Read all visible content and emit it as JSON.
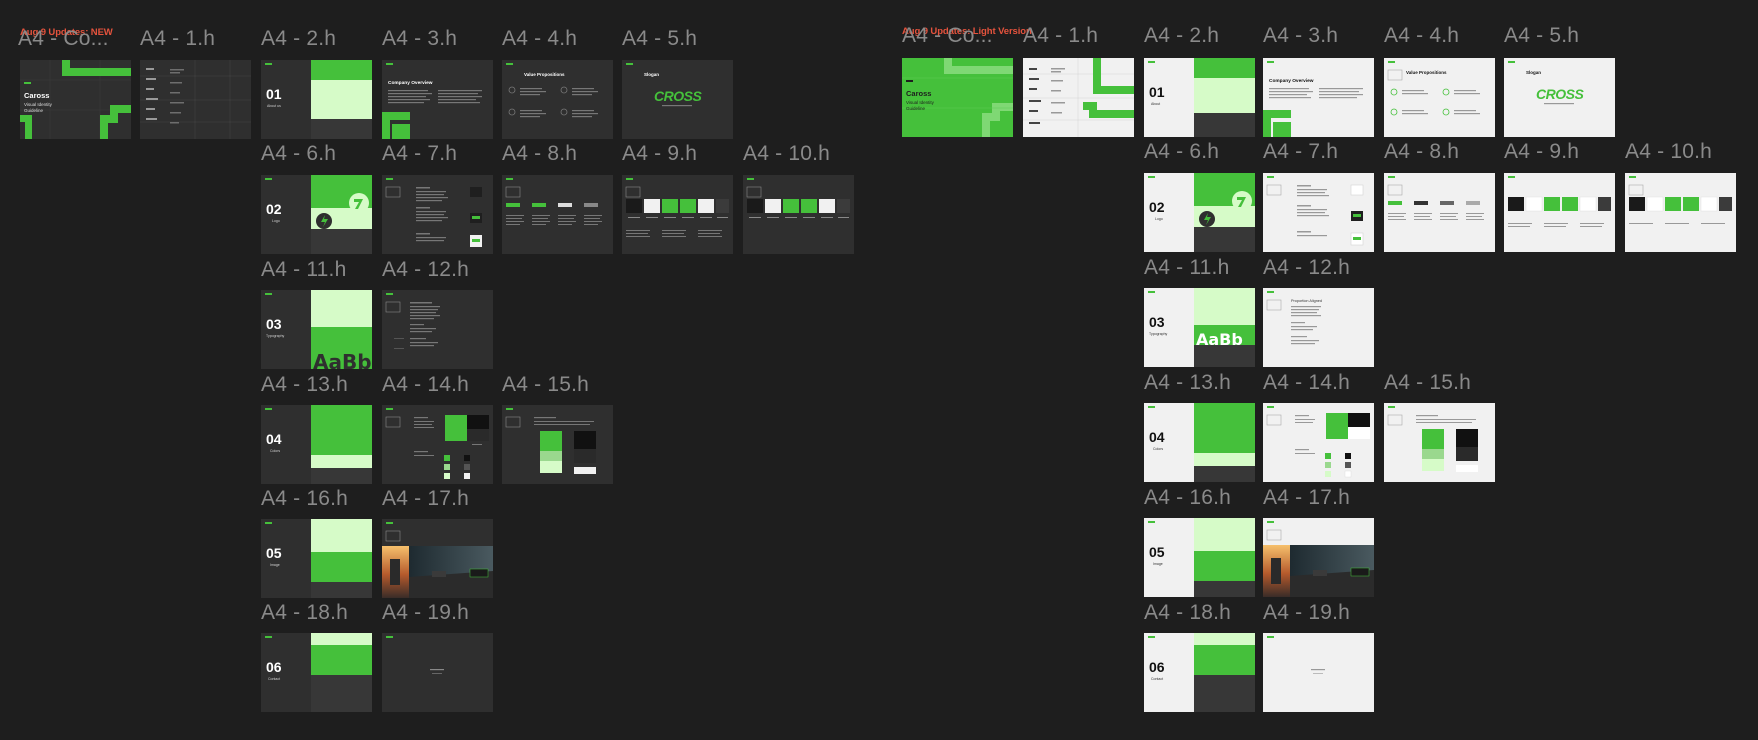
{
  "colors": {
    "canvas": "#1e1e1e",
    "section_label": "#e5533d",
    "frame_label": "#8a8a8a",
    "brand_green": "#45c03b",
    "light_green": "#d6fbc8",
    "dark_slide": "#2f2f2f",
    "light_slide": "#f1f1f1",
    "dark_panel": "#373737",
    "placeholder": "#d8d8d8"
  },
  "sections": [
    {
      "id": "dark",
      "title": "Aug 9 Updates: NEW",
      "theme": "dark",
      "frames": [
        {
          "id": "cover",
          "label": "A4 - Co...",
          "kind": "cover",
          "brand": "Caross",
          "subtitle": "Visual Identity Guideline"
        },
        {
          "id": "1",
          "label": "A4 - 1.h",
          "kind": "toc"
        },
        {
          "id": "2",
          "label": "A4 - 2.h",
          "kind": "section",
          "number": "01",
          "caption": "About us",
          "variant": "about"
        },
        {
          "id": "3",
          "label": "A4 - 3.h",
          "kind": "overview",
          "heading": "Company Overview"
        },
        {
          "id": "4",
          "label": "A4 - 4.h",
          "kind": "values",
          "heading": "Value Propositions"
        },
        {
          "id": "5",
          "label": "A4 - 5.h",
          "kind": "slogan",
          "heading": "Slogan",
          "wordmark": "CROSS"
        },
        {
          "id": "6",
          "label": "A4 - 6.h",
          "kind": "section",
          "number": "02",
          "caption": "Logo",
          "variant": "logo"
        },
        {
          "id": "7",
          "label": "A4 - 7.h",
          "kind": "logo-usage"
        },
        {
          "id": "8",
          "label": "A4 - 8.h",
          "kind": "logo-grid"
        },
        {
          "id": "9",
          "label": "A4 - 9.h",
          "kind": "logo-colors"
        },
        {
          "id": "10",
          "label": "A4 - 10.h",
          "kind": "logo-colors"
        },
        {
          "id": "11",
          "label": "A4 - 11.h",
          "kind": "section",
          "number": "03",
          "caption": "Typography",
          "variant": "type"
        },
        {
          "id": "12",
          "label": "A4 - 12.h",
          "kind": "typeface"
        },
        {
          "id": "13",
          "label": "A4 - 13.h",
          "kind": "section",
          "number": "04",
          "caption": "Colors",
          "variant": "colors"
        },
        {
          "id": "14",
          "label": "A4 - 14.h",
          "kind": "palette"
        },
        {
          "id": "15",
          "label": "A4 - 15.h",
          "kind": "proportion"
        },
        {
          "id": "16",
          "label": "A4 - 16.h",
          "kind": "section",
          "number": "05",
          "caption": "Image",
          "variant": "image"
        },
        {
          "id": "17",
          "label": "A4 - 17.h",
          "kind": "imagery"
        },
        {
          "id": "18",
          "label": "A4 - 18.h",
          "kind": "section",
          "number": "06",
          "caption": "Contact",
          "variant": "contact"
        },
        {
          "id": "19",
          "label": "A4 - 19.h",
          "kind": "blank"
        }
      ]
    },
    {
      "id": "light",
      "title": "Aug 9 Updates: Light Version",
      "theme": "light",
      "frames": [
        {
          "id": "cover",
          "label": "A4 - Co...",
          "kind": "cover",
          "brand": "Caross",
          "subtitle": "Visual Identity Guideline"
        },
        {
          "id": "1",
          "label": "A4 - 1.h",
          "kind": "toc"
        },
        {
          "id": "2",
          "label": "A4 - 2.h",
          "kind": "section",
          "number": "01",
          "caption": "About",
          "variant": "about"
        },
        {
          "id": "3",
          "label": "A4 - 3.h",
          "kind": "overview",
          "heading": "Company Overview"
        },
        {
          "id": "4",
          "label": "A4 - 4.h",
          "kind": "values",
          "heading": "Value Propositions"
        },
        {
          "id": "5",
          "label": "A4 - 5.h",
          "kind": "slogan",
          "heading": "Slogan",
          "wordmark": "CROSS"
        },
        {
          "id": "6",
          "label": "A4 - 6.h",
          "kind": "section",
          "number": "02",
          "caption": "Logo",
          "variant": "logo"
        },
        {
          "id": "7",
          "label": "A4 - 7.h",
          "kind": "logo-usage"
        },
        {
          "id": "8",
          "label": "A4 - 8.h",
          "kind": "logo-grid"
        },
        {
          "id": "9",
          "label": "A4 - 9.h",
          "kind": "logo-colors"
        },
        {
          "id": "10",
          "label": "A4 - 10.h",
          "kind": "logo-colors"
        },
        {
          "id": "11",
          "label": "A4 - 11.h",
          "kind": "section",
          "number": "03",
          "caption": "Typography",
          "variant": "type"
        },
        {
          "id": "12",
          "label": "A4 - 12.h",
          "kind": "typeface",
          "heading": "Proportion Aligned"
        },
        {
          "id": "13",
          "label": "A4 - 13.h",
          "kind": "section",
          "number": "04",
          "caption": "Colors",
          "variant": "colors"
        },
        {
          "id": "14",
          "label": "A4 - 14.h",
          "kind": "palette"
        },
        {
          "id": "15",
          "label": "A4 - 15.h",
          "kind": "proportion"
        },
        {
          "id": "16",
          "label": "A4 - 16.h",
          "kind": "section",
          "number": "05",
          "caption": "Image",
          "variant": "image"
        },
        {
          "id": "17",
          "label": "A4 - 17.h",
          "kind": "imagery"
        },
        {
          "id": "18",
          "label": "A4 - 18.h",
          "kind": "section",
          "number": "06",
          "caption": "Contact",
          "variant": "contact"
        },
        {
          "id": "19",
          "label": "A4 - 19.h",
          "kind": "blank"
        }
      ]
    }
  ]
}
